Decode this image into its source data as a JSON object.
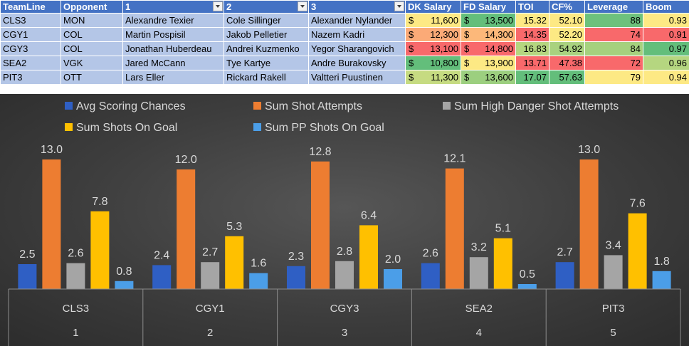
{
  "table": {
    "headers": [
      "TeamLine",
      "Opponent",
      "1",
      "2",
      "3",
      "DK Salary",
      "FD Salary",
      "TOI",
      "CF%",
      "Leverage",
      "Boom"
    ],
    "filter_columns": [
      2,
      3,
      4
    ],
    "currency_symbol": "$",
    "rows": [
      {
        "teamline": "CLS3",
        "opponent": "MON",
        "p1": "Alexandre Texier",
        "p2": "Cole Sillinger",
        "p3": "Alexander Nylander",
        "dk": "11,600",
        "fd": "13,500",
        "toi": "15.32",
        "cf": "52.10",
        "leverage": "88",
        "boom": "0.93",
        "colors": {
          "dk": "#fde984",
          "fd": "#63be7b",
          "toi": "#fde984",
          "cf": "#fde984",
          "leverage": "#6dc17c",
          "boom": "#fde984"
        }
      },
      {
        "teamline": "CGY1",
        "opponent": "COL",
        "p1": "Martin Pospisil",
        "p2": "Jakob Pelletier",
        "p3": "Nazem Kadri",
        "dk": "12,300",
        "fd": "14,300",
        "toi": "14.35",
        "cf": "52.20",
        "leverage": "74",
        "boom": "0.91",
        "colors": {
          "dk": "#fbaa77",
          "fd": "#fcb87a",
          "toi": "#f8696b",
          "cf": "#fde984",
          "leverage": "#f8696b",
          "boom": "#f8696b"
        }
      },
      {
        "teamline": "CGY3",
        "opponent": "COL",
        "p1": "Jonathan Huberdeau",
        "p2": "Andrei Kuzmenko",
        "p3": "Yegor Sharangovich",
        "dk": "13,100",
        "fd": "14,800",
        "toi": "16.83",
        "cf": "54.92",
        "leverage": "84",
        "boom": "0.97",
        "colors": {
          "dk": "#f8696b",
          "fd": "#f8696b",
          "toi": "#b5d680",
          "cf": "#a9d27f",
          "leverage": "#a5d17e",
          "boom": "#63be7b"
        }
      },
      {
        "teamline": "SEA2",
        "opponent": "VGK",
        "p1": "Jared McCann",
        "p2": "Tye Kartye",
        "p3": "Andre Burakovsky",
        "dk": "10,800",
        "fd": "13,900",
        "toi": "13.71",
        "cf": "47.38",
        "leverage": "72",
        "boom": "0.96",
        "colors": {
          "dk": "#63be7b",
          "fd": "#fde984",
          "toi": "#f8696b",
          "cf": "#f8696b",
          "leverage": "#f8696b",
          "boom": "#b5d680"
        }
      },
      {
        "teamline": "PIT3",
        "opponent": "OTT",
        "p1": "Lars Eller",
        "p2": "Rickard Rakell",
        "p3": "Valtteri Puustinen",
        "dk": "11,300",
        "fd": "13,600",
        "toi": "17.07",
        "cf": "57.63",
        "leverage": "79",
        "boom": "0.94",
        "colors": {
          "dk": "#c6db81",
          "fd": "#9ccf7f",
          "toi": "#63be7b",
          "cf": "#63be7b",
          "leverage": "#fde984",
          "boom": "#fde984"
        }
      }
    ]
  },
  "chart_data": {
    "type": "bar",
    "categories": [
      "CLS3",
      "CGY1",
      "CGY3",
      "SEA2",
      "PIT3"
    ],
    "category_numbers": [
      "1",
      "2",
      "3",
      "4",
      "5"
    ],
    "legend_position": "top",
    "grid": false,
    "background": "#3f3f3f",
    "series": [
      {
        "name": "Avg Scoring Chances",
        "color": "#2f5fc4",
        "values": [
          2.5,
          2.4,
          2.3,
          2.6,
          2.7
        ]
      },
      {
        "name": "Sum Shot Attempts",
        "color": "#ed7d31",
        "values": [
          13.0,
          12.0,
          12.8,
          12.1,
          13.0
        ]
      },
      {
        "name": "Sum High Danger Shot Attempts",
        "color": "#a5a5a5",
        "values": [
          2.6,
          2.7,
          2.8,
          3.2,
          3.4
        ]
      },
      {
        "name": "Sum Shots On Goal",
        "color": "#ffc000",
        "values": [
          7.8,
          5.3,
          6.4,
          5.1,
          7.6
        ]
      },
      {
        "name": "Sum PP Shots On Goal",
        "color": "#4b9ee8",
        "values": [
          0.8,
          1.6,
          2.0,
          0.5,
          1.8
        ]
      }
    ]
  }
}
